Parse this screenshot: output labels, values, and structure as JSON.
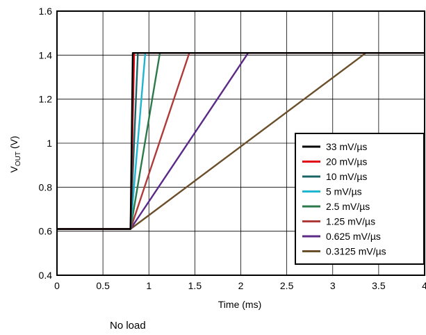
{
  "chart_data": {
    "type": "line",
    "title": "",
    "xlabel": "Time (ms)",
    "ylabel_main": "V",
    "ylabel_sub": "OUT",
    "ylabel_suffix": " (V)",
    "xlim": [
      0,
      4
    ],
    "ylim": [
      0.4,
      1.6
    ],
    "xticks": [
      "0",
      "0.5",
      "1",
      "1.5",
      "2",
      "2.5",
      "3",
      "3.5",
      "4"
    ],
    "yticks": [
      "0.4",
      "0.6",
      "0.8",
      "1",
      "1.2",
      "1.4",
      "1.6"
    ],
    "grid": true,
    "legend_position": "bottom-right",
    "series": [
      {
        "name": "33 mV/µs",
        "color": "#000000",
        "x": [
          0,
          0.8,
          0.824,
          4
        ],
        "y": [
          0.61,
          0.61,
          1.41,
          1.41
        ]
      },
      {
        "name": "20 mV/µs",
        "color": "#e30613",
        "x": [
          0,
          0.8,
          0.84,
          4
        ],
        "y": [
          0.61,
          0.61,
          1.41,
          1.41
        ]
      },
      {
        "name": "10 mV/µs",
        "color": "#1a6466",
        "x": [
          0,
          0.8,
          0.88,
          4
        ],
        "y": [
          0.61,
          0.61,
          1.41,
          1.41
        ]
      },
      {
        "name": "5 mV/µs",
        "color": "#1fb5d0",
        "x": [
          0,
          0.8,
          0.96,
          4
        ],
        "y": [
          0.61,
          0.61,
          1.41,
          1.41
        ]
      },
      {
        "name": "2.5 mV/µs",
        "color": "#2a7a4a",
        "x": [
          0,
          0.8,
          1.12,
          4
        ],
        "y": [
          0.61,
          0.61,
          1.41,
          1.41
        ]
      },
      {
        "name": "1.25 mV/µs",
        "color": "#b03a3a",
        "x": [
          0,
          0.8,
          1.44,
          4
        ],
        "y": [
          0.61,
          0.61,
          1.41,
          1.41
        ]
      },
      {
        "name": "0.625 mV/µs",
        "color": "#5b2a86",
        "x": [
          0,
          0.8,
          2.08,
          4
        ],
        "y": [
          0.61,
          0.61,
          1.41,
          1.41
        ]
      },
      {
        "name": "0.3125 mV/µs",
        "color": "#6b4f2a",
        "x": [
          0,
          0.8,
          3.36,
          4
        ],
        "y": [
          0.61,
          0.61,
          1.41,
          1.41
        ]
      }
    ]
  },
  "caption": "No load"
}
